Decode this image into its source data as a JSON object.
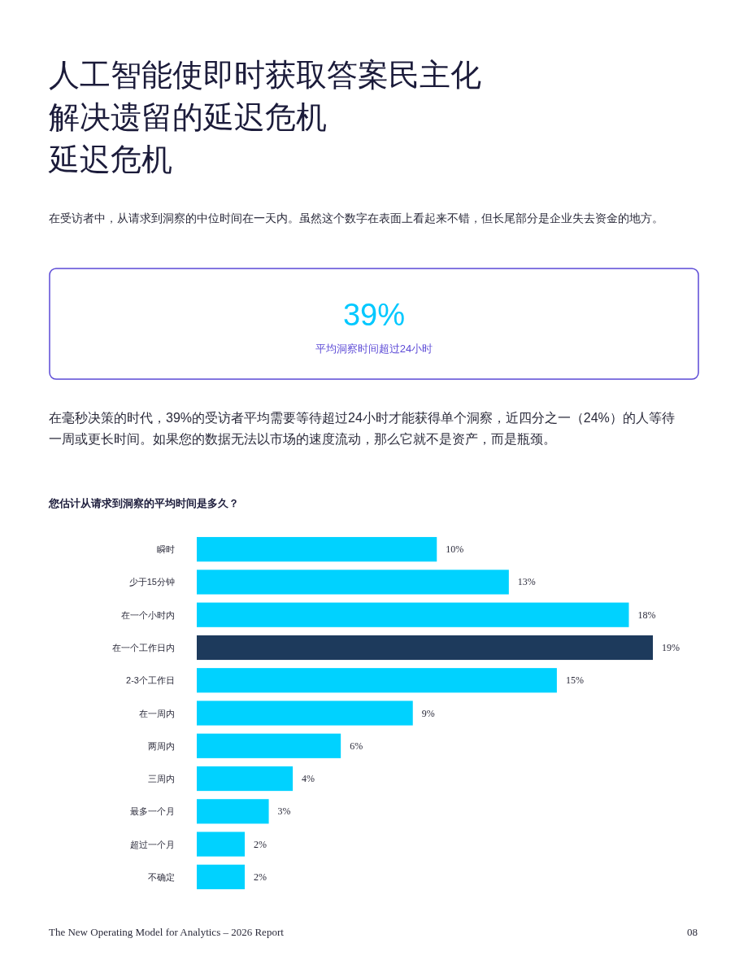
{
  "chart_data": {
    "type": "bar",
    "orientation": "horizontal",
    "title": "人工智能使即时获取答案民主化解决遗留的延迟危机",
    "subtitle": "在受访者中，从请求到洞察的中位时间在一天内。虽然这个数字在表面上看起来不错，但长尾部分是企业失去资金的地方。",
    "annotations": [
      "延迟危机",
      "39%",
      "平均洞察时间超过24小时",
      "在毫秒决策的时代，39%的受访者平均需要等待超过24小时才能获得单个洞察，近四分之一（24%）的人等待一周或更长时间。如果您的数据无法以市场的速度流动，那么它就不是资产，而是瓶颈。",
      "您估计从请求到洞察的平均时间是多久？",
      "The New Operating Model for Analytics – 2026 Report",
      "08"
    ],
    "categories": [
      "瞬时",
      "少于15分钟",
      "在一个小时内",
      "在一个工作日内",
      "2-3个工作日",
      "在一周内",
      "两周内",
      "三周内",
      "最多一个月",
      "超过一个月",
      "不确定"
    ],
    "values": [
      10,
      13,
      18,
      19,
      15,
      9,
      6,
      4,
      3,
      2,
      2
    ],
    "colors": [
      "#00d2ff",
      "#00d2ff",
      "#00d2ff",
      "#1d3a5c",
      "#00d2ff",
      "#00d2ff",
      "#00d2ff",
      "#00d2ff",
      "#00d2ff",
      "#00d2ff",
      "#00d2ff"
    ],
    "value_labels": [
      "10%",
      "13%",
      "18%",
      "19%",
      "15%",
      "9%",
      "6%",
      "4%",
      "3%",
      "2%",
      "2%"
    ],
    "data_labels": false
  }
}
